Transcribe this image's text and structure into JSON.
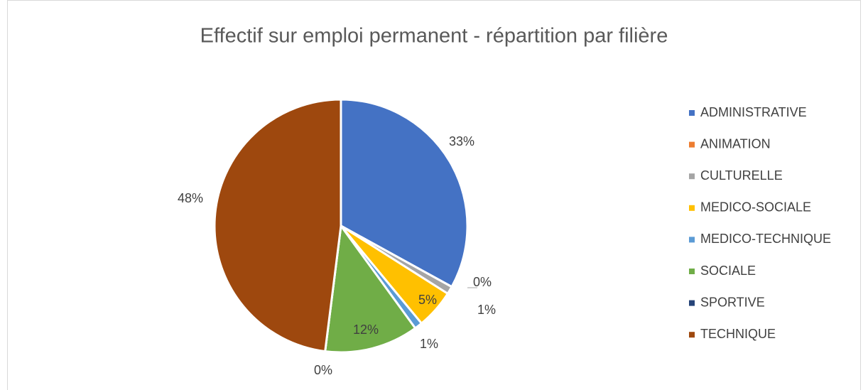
{
  "chart_data": {
    "type": "pie",
    "title": "Effectif sur emploi permanent - répartition par filière",
    "categories": [
      "ADMINISTRATIVE",
      "ANIMATION",
      "CULTURELLE",
      "MEDICO-SOCIALE",
      "MEDICO-TECHNIQUE",
      "SOCIALE",
      "SPORTIVE",
      "TECHNIQUE"
    ],
    "values": [
      33,
      0,
      1,
      5,
      1,
      12,
      0,
      48
    ],
    "value_labels": [
      "33%",
      "0%",
      "1%",
      "5%",
      "1%",
      "12%",
      "0%",
      "48%"
    ],
    "colors": [
      "#4472c4",
      "#ed7d31",
      "#a5a5a5",
      "#ffc000",
      "#5b9bd5",
      "#70ad47",
      "#264478",
      "#9e480e"
    ],
    "legend": "right"
  }
}
